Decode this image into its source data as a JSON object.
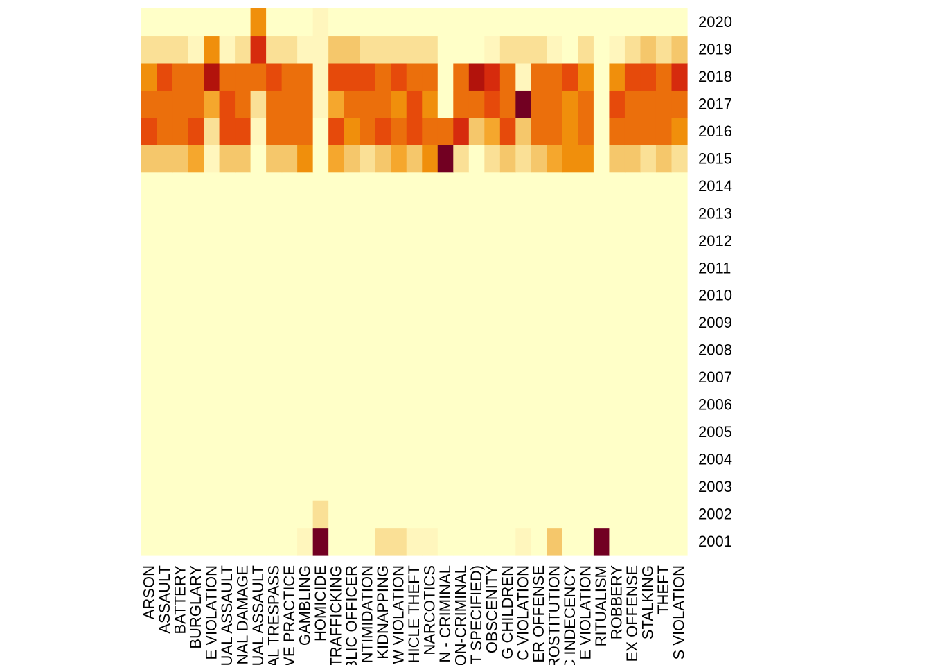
{
  "chart_data": {
    "type": "heatmap",
    "title": "",
    "xlabel": "",
    "ylabel": "",
    "legend": "none",
    "grid": false,
    "x": [
      "ARSON",
      "ASSAULT",
      "BATTERY",
      "BURGLARY",
      "E VIOLATION",
      "UAL ASSAULT",
      "NAL DAMAGE",
      "UAL ASSAULT",
      "AL TRESPASS",
      "VE PRACTICE",
      "GAMBLING",
      "HOMICIDE",
      "TRAFFICKING",
      "BLIC OFFICER",
      "NTIMIDATION",
      "KIDNAPPING",
      "W VIOLATION",
      "HICLE THEFT",
      "NARCOTICS",
      "N - CRIMINAL",
      "ON-CRIMINAL",
      "T SPECIFIED)",
      "OBSCENITY",
      "G CHILDREN",
      "C VIOLATION",
      "ER OFFENSE",
      "ROSTITUTION",
      "C INDECENCY",
      "E VIOLATION",
      "RITUALISM",
      "ROBBERY",
      "EX OFFENSE",
      "STALKING",
      "THEFT",
      "S VIOLATION"
    ],
    "y": [
      "2001",
      "2002",
      "2003",
      "2004",
      "2005",
      "2006",
      "2007",
      "2008",
      "2009",
      "2010",
      "2011",
      "2012",
      "2013",
      "2014",
      "2015",
      "2016",
      "2017",
      "2018",
      "2019",
      "2020"
    ],
    "value_range": [
      0,
      9
    ],
    "colors": [
      "#FFFFC8",
      "#FFF6BD",
      "#FAE096",
      "#F5C76B",
      "#F5A72D",
      "#F08F0C",
      "#EB6F0C",
      "#E64A0B",
      "#D62B0D",
      "#B2130C",
      "#720022"
    ],
    "values": [
      [
        0,
        0,
        0,
        0,
        0,
        0,
        0,
        0,
        0,
        0,
        1,
        10,
        0,
        0,
        0,
        2,
        2,
        1,
        1,
        0,
        0,
        0,
        0,
        0,
        1,
        0,
        3,
        0,
        0,
        10,
        0,
        0,
        0,
        0,
        0
      ],
      [
        0,
        0,
        0,
        0,
        0,
        0,
        0,
        0,
        0,
        0,
        0,
        2,
        0,
        0,
        0,
        0,
        0,
        0,
        0,
        0,
        0,
        0,
        0,
        0,
        0,
        0,
        0,
        0,
        0,
        0,
        0,
        0,
        0,
        0,
        0
      ],
      [
        0,
        0,
        0,
        0,
        0,
        0,
        0,
        0,
        0,
        0,
        0,
        0,
        0,
        0,
        0,
        0,
        0,
        0,
        0,
        0,
        0,
        0,
        0,
        0,
        0,
        0,
        0,
        0,
        0,
        0,
        0,
        0,
        0,
        0,
        0
      ],
      [
        0,
        0,
        0,
        0,
        0,
        0,
        0,
        0,
        0,
        0,
        0,
        0,
        0,
        0,
        0,
        0,
        0,
        0,
        0,
        0,
        0,
        0,
        0,
        0,
        0,
        0,
        0,
        0,
        0,
        0,
        0,
        0,
        0,
        0,
        0
      ],
      [
        0,
        0,
        0,
        0,
        0,
        0,
        0,
        0,
        0,
        0,
        0,
        0,
        0,
        0,
        0,
        0,
        0,
        0,
        0,
        0,
        0,
        0,
        0,
        0,
        0,
        0,
        0,
        0,
        0,
        0,
        0,
        0,
        0,
        0,
        0
      ],
      [
        0,
        0,
        0,
        0,
        0,
        0,
        0,
        0,
        0,
        0,
        0,
        0,
        0,
        0,
        0,
        0,
        0,
        0,
        0,
        0,
        0,
        0,
        0,
        0,
        0,
        0,
        0,
        0,
        0,
        0,
        0,
        0,
        0,
        0,
        0
      ],
      [
        0,
        0,
        0,
        0,
        0,
        0,
        0,
        0,
        0,
        0,
        0,
        0,
        0,
        0,
        0,
        0,
        0,
        0,
        0,
        0,
        0,
        0,
        0,
        0,
        0,
        0,
        0,
        0,
        0,
        0,
        0,
        0,
        0,
        0,
        0
      ],
      [
        0,
        0,
        0,
        0,
        0,
        0,
        0,
        0,
        0,
        0,
        0,
        0,
        0,
        0,
        0,
        0,
        0,
        0,
        0,
        0,
        0,
        0,
        0,
        0,
        0,
        0,
        0,
        0,
        0,
        0,
        0,
        0,
        0,
        0,
        0
      ],
      [
        0,
        0,
        0,
        0,
        0,
        0,
        0,
        0,
        0,
        0,
        0,
        0,
        0,
        0,
        0,
        0,
        0,
        0,
        0,
        0,
        0,
        0,
        0,
        0,
        0,
        0,
        0,
        0,
        0,
        0,
        0,
        0,
        0,
        0,
        0
      ],
      [
        0,
        0,
        0,
        0,
        0,
        0,
        0,
        0,
        0,
        0,
        0,
        0,
        0,
        0,
        0,
        0,
        0,
        0,
        0,
        0,
        0,
        0,
        0,
        0,
        0,
        0,
        0,
        0,
        0,
        0,
        0,
        0,
        0,
        0,
        0
      ],
      [
        0,
        0,
        0,
        0,
        0,
        0,
        0,
        0,
        0,
        0,
        0,
        0,
        0,
        0,
        0,
        0,
        0,
        0,
        0,
        0,
        0,
        0,
        0,
        0,
        0,
        0,
        0,
        0,
        0,
        0,
        0,
        0,
        0,
        0,
        0
      ],
      [
        0,
        0,
        0,
        0,
        0,
        0,
        0,
        0,
        0,
        0,
        0,
        0,
        0,
        0,
        0,
        0,
        0,
        0,
        0,
        0,
        0,
        0,
        0,
        0,
        0,
        0,
        0,
        0,
        0,
        0,
        0,
        0,
        0,
        0,
        0
      ],
      [
        0,
        0,
        0,
        0,
        0,
        0,
        0,
        0,
        0,
        0,
        0,
        0,
        0,
        0,
        0,
        0,
        0,
        0,
        0,
        0,
        0,
        0,
        0,
        0,
        0,
        0,
        0,
        0,
        0,
        0,
        0,
        0,
        0,
        0,
        0
      ],
      [
        0,
        0,
        0,
        0,
        0,
        0,
        0,
        0,
        0,
        0,
        0,
        0,
        0,
        0,
        0,
        0,
        0,
        0,
        0,
        0,
        0,
        0,
        0,
        0,
        0,
        0,
        0,
        0,
        0,
        0,
        0,
        0,
        0,
        0,
        0
      ],
      [
        3,
        3,
        3,
        4,
        1,
        3,
        3,
        0,
        3,
        3,
        5,
        0,
        4,
        3,
        2,
        3,
        4,
        3,
        5,
        10,
        2,
        0,
        2,
        3,
        2,
        3,
        4,
        5,
        5,
        0,
        3,
        3,
        2,
        3,
        2
      ],
      [
        7,
        6,
        6,
        7,
        2,
        7,
        7,
        1,
        6,
        6,
        6,
        0,
        7,
        5,
        6,
        7,
        6,
        7,
        6,
        6,
        8,
        3,
        4,
        7,
        3,
        6,
        6,
        5,
        6,
        0,
        6,
        6,
        6,
        6,
        5
      ],
      [
        6,
        6,
        6,
        6,
        4,
        7,
        6,
        2,
        6,
        6,
        6,
        1,
        4,
        6,
        6,
        6,
        5,
        7,
        5,
        0,
        6,
        6,
        7,
        6,
        10,
        6,
        6,
        5,
        6,
        0,
        7,
        6,
        6,
        6,
        6
      ],
      [
        5,
        7,
        6,
        6,
        9,
        6,
        6,
        6,
        7,
        6,
        6,
        1,
        7,
        7,
        7,
        6,
        7,
        6,
        6,
        0,
        6,
        9,
        8,
        6,
        1,
        6,
        6,
        7,
        5,
        0,
        5,
        7,
        7,
        6,
        8
      ],
      [
        2,
        2,
        2,
        1,
        5,
        1,
        2,
        8,
        2,
        2,
        1,
        1,
        3,
        3,
        2,
        2,
        2,
        2,
        2,
        0,
        0,
        0,
        1,
        2,
        2,
        2,
        1,
        0,
        2,
        0,
        1,
        2,
        3,
        2,
        3
      ],
      [
        0,
        0,
        0,
        0,
        0,
        0,
        0,
        5,
        0,
        0,
        0,
        1,
        0,
        0,
        0,
        0,
        0,
        0,
        0,
        0,
        0,
        0,
        0,
        0,
        0,
        0,
        0,
        0,
        0,
        0,
        0,
        0,
        0,
        0,
        0
      ]
    ]
  }
}
